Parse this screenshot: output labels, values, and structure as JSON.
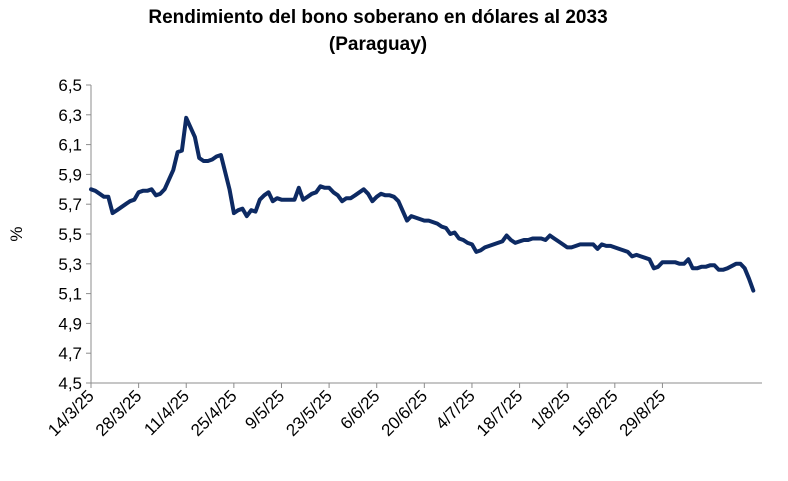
{
  "chart_data": {
    "type": "line",
    "title": "Rendimiento del bono soberano en dólares al 2033",
    "subtitle": "(Paraguay)",
    "xlabel": "",
    "ylabel": "%",
    "ylim": [
      4.5,
      6.5
    ],
    "yticks": [
      "6,5",
      "6,3",
      "6,1",
      "5,9",
      "5,7",
      "5,5",
      "5,3",
      "5,1",
      "4,9",
      "4,7",
      "4,5"
    ],
    "xticks": [
      "14/3/25",
      "28/3/25",
      "11/4/25",
      "25/4/25",
      "9/5/25",
      "23/5/25",
      "6/6/25",
      "20/6/25",
      "4/7/25",
      "18/7/25",
      "1/8/25",
      "15/8/25",
      "29/8/25"
    ],
    "grid": false,
    "legend": "none",
    "line_color": "#0d2a63",
    "series": [
      {
        "values": [
          [
            0,
            5.8
          ],
          [
            1,
            5.79
          ],
          [
            2,
            5.77
          ],
          [
            3,
            5.75
          ],
          [
            4,
            5.75
          ],
          [
            5,
            5.64
          ],
          [
            6,
            5.66
          ],
          [
            7,
            5.68
          ],
          [
            8,
            5.7
          ],
          [
            9,
            5.72
          ],
          [
            10,
            5.73
          ],
          [
            11,
            5.78
          ],
          [
            12,
            5.79
          ],
          [
            13,
            5.79
          ],
          [
            14,
            5.8
          ],
          [
            15,
            5.76
          ],
          [
            16,
            5.77
          ],
          [
            17,
            5.8
          ],
          [
            19,
            5.93
          ],
          [
            20,
            6.05
          ],
          [
            21,
            6.06
          ],
          [
            22,
            6.28
          ],
          [
            24,
            6.15
          ],
          [
            25,
            6.01
          ],
          [
            26,
            5.99
          ],
          [
            27,
            5.99
          ],
          [
            28,
            6.0
          ],
          [
            29,
            6.02
          ],
          [
            30,
            6.03
          ],
          [
            32,
            5.8
          ],
          [
            33,
            5.64
          ],
          [
            34,
            5.66
          ],
          [
            35,
            5.67
          ],
          [
            36,
            5.62
          ],
          [
            37,
            5.66
          ],
          [
            38,
            5.65
          ],
          [
            39,
            5.73
          ],
          [
            40,
            5.76
          ],
          [
            41,
            5.78
          ],
          [
            42,
            5.72
          ],
          [
            43,
            5.74
          ],
          [
            44,
            5.73
          ],
          [
            45,
            5.73
          ],
          [
            46,
            5.73
          ],
          [
            47,
            5.73
          ],
          [
            48,
            5.81
          ],
          [
            49,
            5.73
          ],
          [
            50,
            5.75
          ],
          [
            51,
            5.77
          ],
          [
            52,
            5.78
          ],
          [
            53,
            5.82
          ],
          [
            54,
            5.81
          ],
          [
            55,
            5.81
          ],
          [
            56,
            5.78
          ],
          [
            57,
            5.76
          ],
          [
            58,
            5.72
          ],
          [
            59,
            5.74
          ],
          [
            60,
            5.74
          ],
          [
            61,
            5.76
          ],
          [
            62,
            5.78
          ],
          [
            63,
            5.8
          ],
          [
            64,
            5.77
          ],
          [
            65,
            5.72
          ],
          [
            66,
            5.75
          ],
          [
            67,
            5.77
          ],
          [
            68,
            5.76
          ],
          [
            69,
            5.76
          ],
          [
            70,
            5.75
          ],
          [
            71,
            5.72
          ],
          [
            73,
            5.59
          ],
          [
            74,
            5.62
          ],
          [
            75,
            5.61
          ],
          [
            76,
            5.6
          ],
          [
            77,
            5.59
          ],
          [
            78,
            5.59
          ],
          [
            79,
            5.58
          ],
          [
            80,
            5.57
          ],
          [
            81,
            5.55
          ],
          [
            82,
            5.54
          ],
          [
            83,
            5.5
          ],
          [
            84,
            5.51
          ],
          [
            85,
            5.47
          ],
          [
            86,
            5.46
          ],
          [
            87,
            5.44
          ],
          [
            88,
            5.43
          ],
          [
            89,
            5.38
          ],
          [
            90,
            5.39
          ],
          [
            91,
            5.41
          ],
          [
            92,
            5.42
          ],
          [
            93,
            5.43
          ],
          [
            94,
            5.44
          ],
          [
            95,
            5.45
          ],
          [
            96,
            5.49
          ],
          [
            97,
            5.46
          ],
          [
            98,
            5.44
          ],
          [
            99,
            5.45
          ],
          [
            100,
            5.46
          ],
          [
            101,
            5.46
          ],
          [
            102,
            5.47
          ],
          [
            103,
            5.47
          ],
          [
            104,
            5.47
          ],
          [
            105,
            5.46
          ],
          [
            106,
            5.49
          ],
          [
            107,
            5.47
          ],
          [
            108,
            5.45
          ],
          [
            109,
            5.43
          ],
          [
            110,
            5.41
          ],
          [
            111,
            5.41
          ],
          [
            112,
            5.42
          ],
          [
            113,
            5.43
          ],
          [
            114,
            5.43
          ],
          [
            115,
            5.43
          ],
          [
            116,
            5.43
          ],
          [
            117,
            5.4
          ],
          [
            118,
            5.43
          ],
          [
            119,
            5.42
          ],
          [
            120,
            5.42
          ],
          [
            121,
            5.41
          ],
          [
            122,
            5.4
          ],
          [
            123,
            5.39
          ],
          [
            124,
            5.38
          ],
          [
            125,
            5.35
          ],
          [
            126,
            5.36
          ],
          [
            127,
            5.35
          ],
          [
            128,
            5.34
          ],
          [
            129,
            5.33
          ],
          [
            130,
            5.27
          ],
          [
            131,
            5.28
          ],
          [
            132,
            5.31
          ],
          [
            133,
            5.31
          ],
          [
            134,
            5.31
          ],
          [
            135,
            5.31
          ],
          [
            136,
            5.3
          ],
          [
            137,
            5.3
          ],
          [
            138,
            5.33
          ],
          [
            139,
            5.27
          ],
          [
            140,
            5.27
          ],
          [
            141,
            5.28
          ],
          [
            142,
            5.28
          ],
          [
            143,
            5.29
          ],
          [
            144,
            5.29
          ],
          [
            145,
            5.26
          ],
          [
            146,
            5.26
          ],
          [
            147,
            5.27
          ],
          [
            149,
            5.3
          ],
          [
            150,
            5.3
          ],
          [
            151,
            5.27
          ],
          [
            152,
            5.2
          ],
          [
            153,
            5.12
          ]
        ]
      }
    ]
  }
}
